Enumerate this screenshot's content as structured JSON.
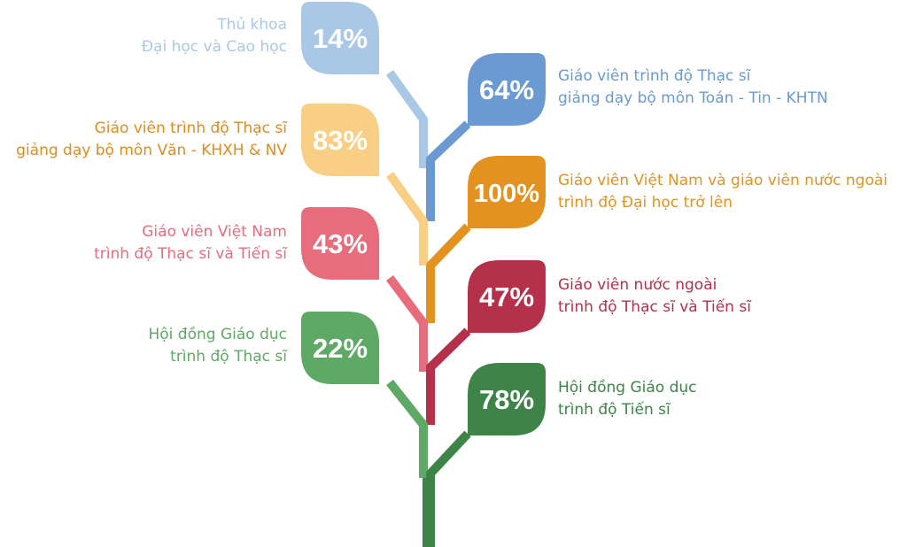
{
  "items": [
    {
      "value": "14%",
      "line1": "Thủ khoa",
      "line2": "Đại học và Cao học",
      "color": "#a9c8e6",
      "side": "left"
    },
    {
      "value": "64%",
      "line1": "Giáo viên trình độ Thạc sĩ",
      "line2": "giảng dạy bộ môn Toán - Tin - KHTN",
      "color": "#6a9ad1",
      "side": "right"
    },
    {
      "value": "83%",
      "line1": "Giáo viên trình độ Thạc sĩ",
      "line2": "giảng dạy bộ môn Văn - KHXH & NV",
      "color": "#f8cf85",
      "text_color": "#e08b1f",
      "side": "left"
    },
    {
      "value": "100%",
      "line1": "Giáo viên Việt Nam và giáo viên nước ngoài",
      "line2": "trình độ Đại học trở lên",
      "color": "#e3921f",
      "side": "right"
    },
    {
      "value": "43%",
      "line1": "Giáo viên Việt Nam",
      "line2": "trình độ Thạc sĩ và Tiến sĩ",
      "color": "#e76c7c",
      "side": "left"
    },
    {
      "value": "47%",
      "line1": "Giáo viên nước ngoài",
      "line2": "trình độ Thạc sĩ và Tiến sĩ",
      "color": "#b5304a",
      "side": "right"
    },
    {
      "value": "22%",
      "line1": "Hội đồng Giáo dục",
      "line2": "trình độ Thạc sĩ",
      "color": "#5ea966",
      "side": "left"
    },
    {
      "value": "78%",
      "line1": "Hội đồng Giáo dục",
      "line2": "trình độ Tiến sĩ",
      "color": "#3e8448",
      "side": "right"
    }
  ],
  "trunk_color": "#3e8448"
}
